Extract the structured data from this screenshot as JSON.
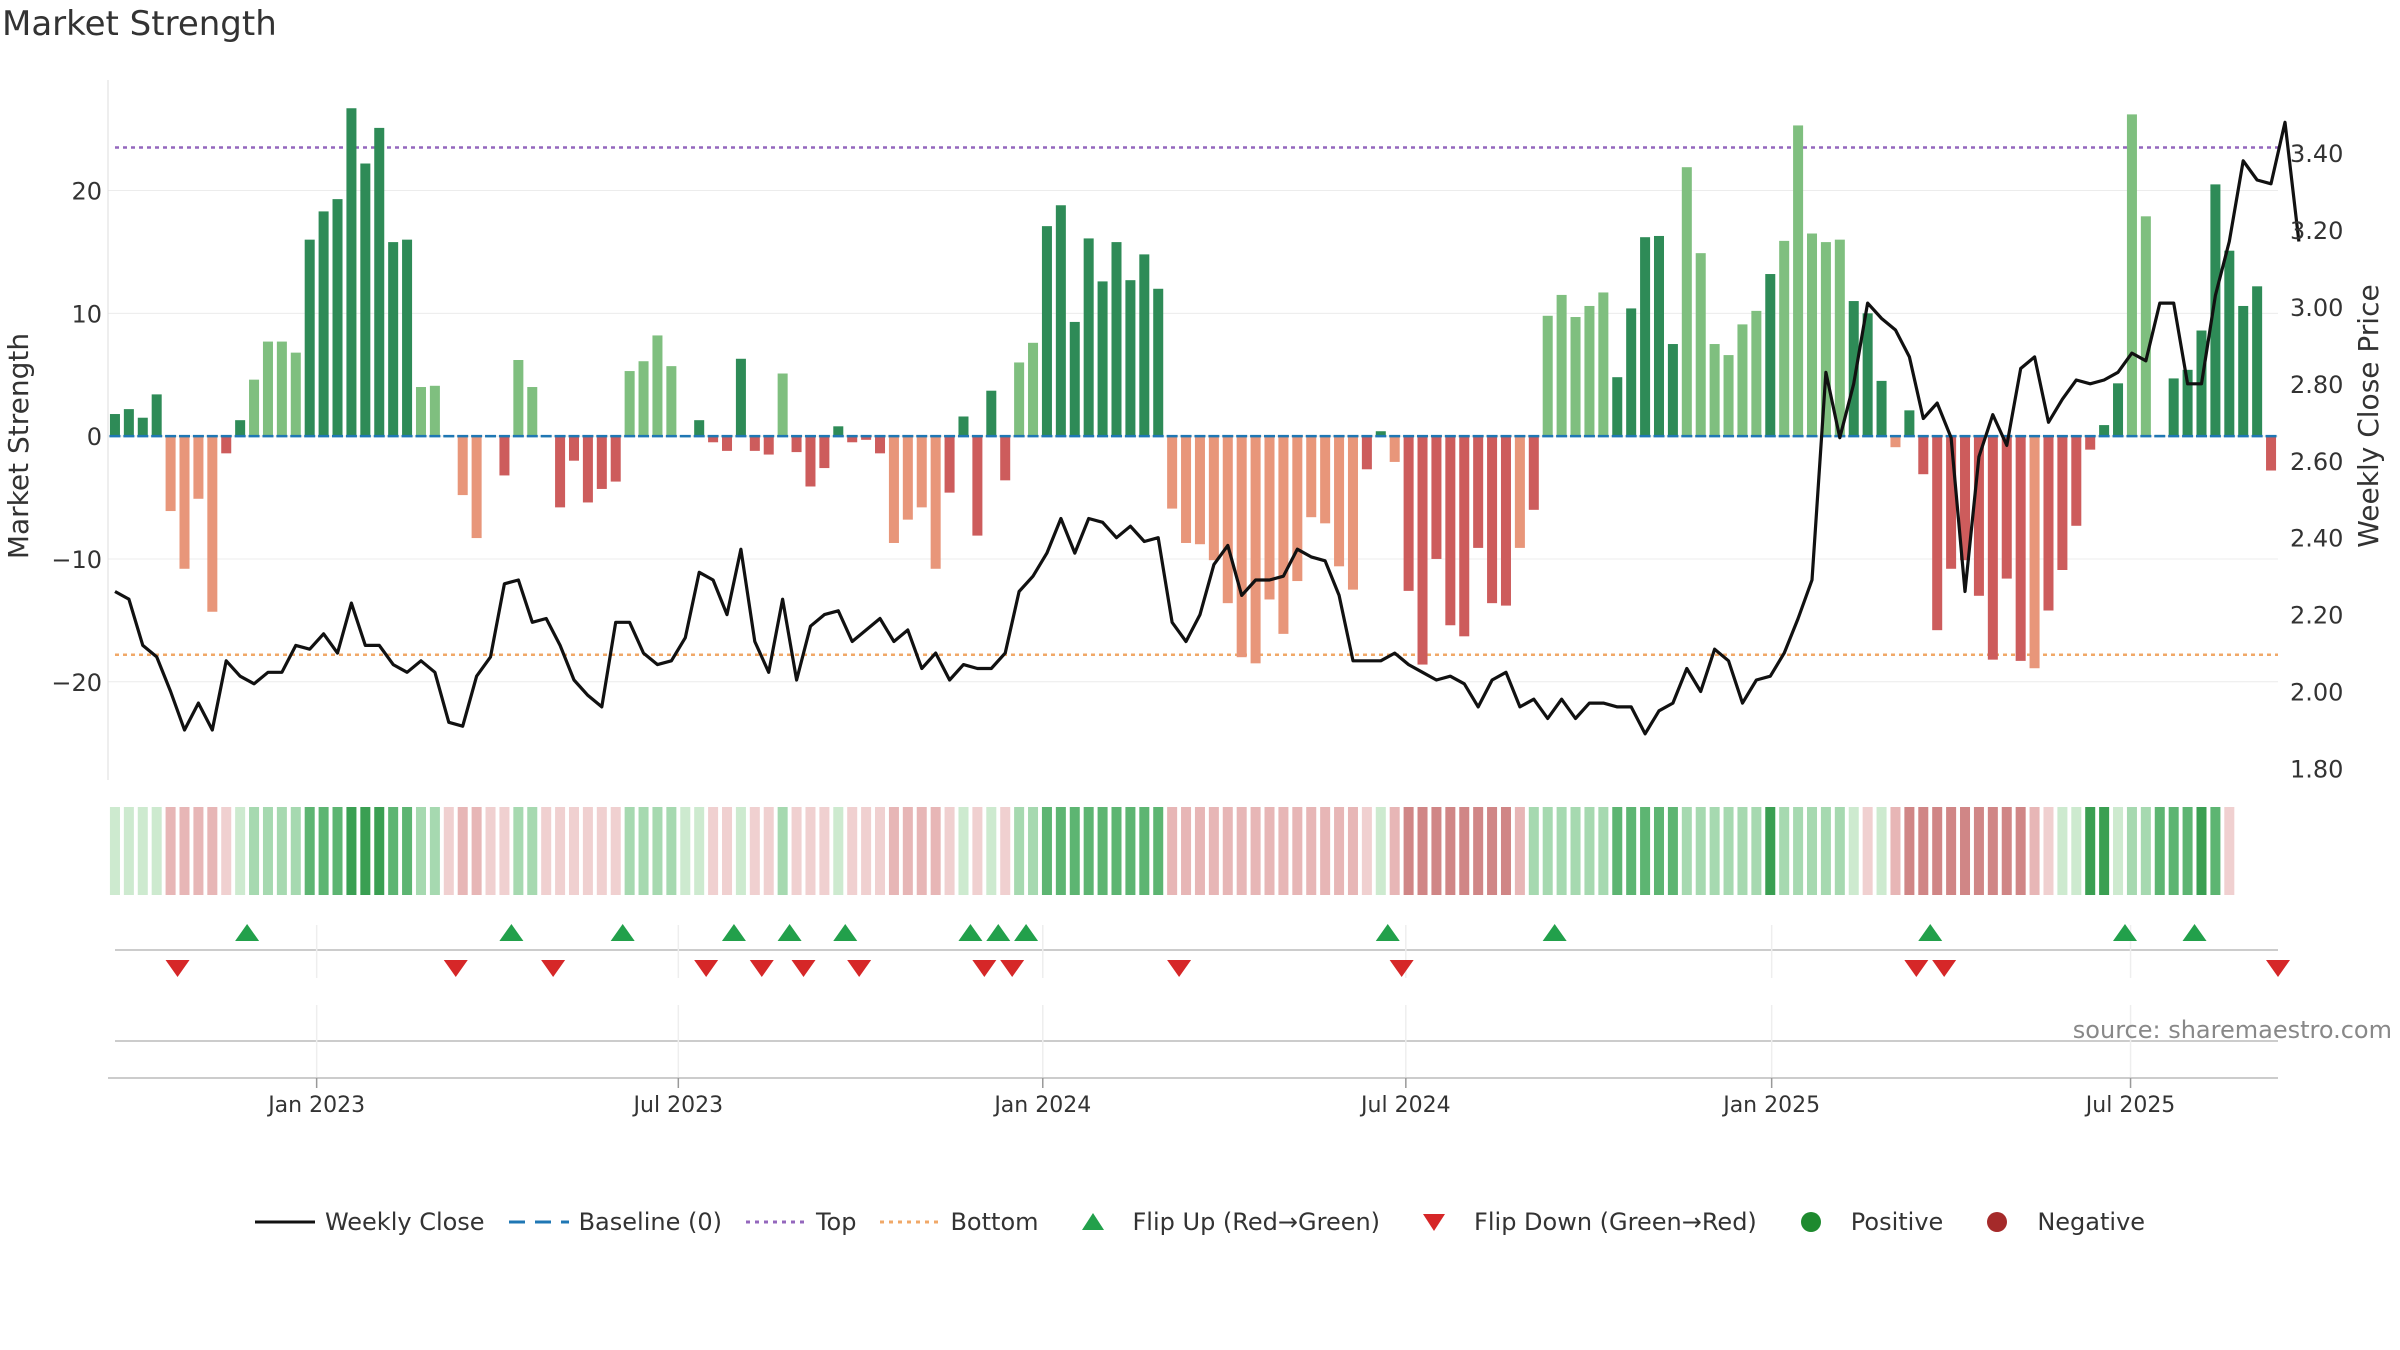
{
  "title": "Market Strength",
  "source": "source: sharemaestro.com",
  "legend": [
    {
      "label": "Weekly Close",
      "kind": "line",
      "color": "#111111"
    },
    {
      "label": "Baseline (0)",
      "kind": "dash",
      "color": "#1f77b4"
    },
    {
      "label": "Top",
      "kind": "dot",
      "color": "#9467bd"
    },
    {
      "label": "Bottom",
      "kind": "dot",
      "color": "#f0a868"
    },
    {
      "label": "Flip Up (Red→Green)",
      "kind": "tri-up",
      "color": "#22a04b"
    },
    {
      "label": "Flip Down (Green→Red)",
      "kind": "tri-down",
      "color": "#d62728"
    },
    {
      "label": "Positive",
      "kind": "circle",
      "color": "#1e8a2f"
    },
    {
      "label": "Negative",
      "kind": "circle",
      "color": "#a52a2a"
    }
  ],
  "chart_data": {
    "type": "bar",
    "title": "Market Strength",
    "ylabel": "Market Strength",
    "y2label": "Weekly Close Price",
    "ylim": [
      -28,
      29
    ],
    "y2lim": [
      1.77,
      3.59
    ],
    "yticks": [
      "−20",
      "−10",
      "0",
      "10",
      "20"
    ],
    "yticks_values": [
      -20,
      -10,
      0,
      10,
      20
    ],
    "y2ticks": [
      "1.80",
      "2.00",
      "2.20",
      "2.40",
      "2.60",
      "2.80",
      "3.00",
      "3.20",
      "3.40"
    ],
    "y2ticks_values": [
      1.8,
      2.0,
      2.2,
      2.4,
      2.6,
      2.8,
      3.0,
      3.2,
      3.4
    ],
    "xtick_labels": [
      "Jan 2023",
      "Jul 2023",
      "Jan 2024",
      "Jul 2024",
      "Jan 2025",
      "Jul 2025"
    ],
    "xtick_index": [
      14.5,
      40.5,
      66.7,
      92.8,
      119.1,
      144.9
    ],
    "top_line": 23.5,
    "bottom_line": -17.8,
    "baseline": 0,
    "strength": [
      1.8,
      2.2,
      1.5,
      3.4,
      -6.1,
      -10.8,
      -5.1,
      -14.3,
      -1.4,
      1.3,
      4.6,
      7.7,
      7.7,
      6.8,
      16,
      18.3,
      19.3,
      26.7,
      22.2,
      25.1,
      15.8,
      16,
      4,
      4.1,
      0,
      -4.8,
      -8.3,
      0,
      -3.2,
      6.2,
      4,
      0,
      -5.8,
      -2,
      -5.4,
      -4.3,
      -3.7,
      5.3,
      6.1,
      8.2,
      5.7,
      0,
      1.3,
      -0.5,
      -1.2,
      6.3,
      -1.2,
      -1.5,
      5.1,
      -1.3,
      -4.1,
      -2.6,
      0.8,
      -0.5,
      -0.3,
      -1.4,
      -8.7,
      -6.8,
      -5.8,
      -10.8,
      -4.6,
      1.6,
      -8.1,
      3.7,
      -3.6,
      6,
      7.6,
      17.1,
      18.8,
      9.3,
      16.1,
      12.6,
      15.8,
      12.7,
      14.8,
      12,
      -5.9,
      -8.7,
      -8.8,
      -10.1,
      -13.6,
      -18,
      -18.5,
      -13.3,
      -16.1,
      -11.8,
      -6.6,
      -7.1,
      -10.6,
      -12.5,
      -2.7,
      0.4,
      -2.1,
      -12.6,
      -18.6,
      -10,
      -15.4,
      -16.3,
      -9.1,
      -13.6,
      -13.8,
      -9.1,
      -6,
      9.8,
      11.5,
      9.7,
      10.6,
      11.7,
      4.8,
      10.4,
      16.2,
      16.3,
      7.5,
      21.9,
      14.9,
      7.5,
      6.6,
      9.1,
      10.2,
      13.2,
      15.9,
      25.3,
      16.5,
      15.8,
      16,
      11,
      10,
      4.5,
      -0.9,
      2.1,
      -3.1,
      -15.8,
      -10.8,
      -10.1,
      -13,
      -18.2,
      -11.6,
      -18.3,
      -18.9,
      -14.2,
      -10.9,
      -7.3,
      -1.1,
      0.9,
      4.3,
      26.2,
      17.9,
      0.1,
      4.7,
      5.4,
      8.6,
      20.5,
      15.1,
      10.6,
      12.2,
      -2.8
    ],
    "close": [
      2.26,
      2.24,
      2.12,
      2.09,
      2.0,
      1.9,
      1.97,
      1.9,
      2.08,
      2.04,
      2.02,
      2.05,
      2.05,
      2.12,
      2.11,
      2.15,
      2.1,
      2.23,
      2.12,
      2.12,
      2.07,
      2.05,
      2.08,
      2.05,
      1.92,
      1.91,
      2.04,
      2.09,
      2.28,
      2.29,
      2.18,
      2.19,
      2.12,
      2.03,
      1.99,
      1.96,
      2.18,
      2.18,
      2.1,
      2.07,
      2.08,
      2.14,
      2.31,
      2.29,
      2.2,
      2.37,
      2.13,
      2.05,
      2.24,
      2.03,
      2.17,
      2.2,
      2.21,
      2.13,
      2.16,
      2.19,
      2.13,
      2.16,
      2.06,
      2.1,
      2.03,
      2.07,
      2.06,
      2.06,
      2.1,
      2.26,
      2.3,
      2.36,
      2.45,
      2.36,
      2.45,
      2.44,
      2.4,
      2.43,
      2.39,
      2.4,
      2.18,
      2.13,
      2.2,
      2.33,
      2.38,
      2.25,
      2.29,
      2.29,
      2.3,
      2.37,
      2.35,
      2.34,
      2.25,
      2.08,
      2.08,
      2.08,
      2.1,
      2.07,
      2.05,
      2.03,
      2.04,
      2.02,
      1.96,
      2.03,
      2.05,
      1.96,
      1.98,
      1.93,
      1.98,
      1.93,
      1.97,
      1.97,
      1.96,
      1.96,
      1.89,
      1.95,
      1.97,
      2.06,
      2.0,
      2.11,
      2.08,
      1.97,
      2.03,
      2.04,
      2.1,
      2.19,
      2.29,
      2.83,
      2.66,
      2.8,
      3.01,
      2.97,
      2.94,
      2.87,
      2.71,
      2.75,
      2.66,
      2.26,
      2.61,
      2.72,
      2.64,
      2.84,
      2.87,
      2.7,
      2.76,
      2.81,
      2.8,
      2.81,
      2.83,
      2.88,
      2.86,
      3.01,
      3.01,
      2.8,
      2.8,
      3.03,
      3.17,
      3.38,
      3.33,
      3.32,
      3.48,
      3.17
    ],
    "regime": [
      1,
      1,
      1,
      1,
      -2,
      -2,
      -2,
      -2,
      -1,
      1,
      2,
      2,
      2,
      2,
      3,
      3,
      3,
      4,
      4,
      4,
      3,
      3,
      2,
      2,
      -1,
      -2,
      -2,
      -1,
      -1,
      2,
      2,
      -1,
      -1,
      -1,
      -1,
      -1,
      -1,
      2,
      2,
      2,
      2,
      1,
      1,
      -1,
      -1,
      1,
      -1,
      -1,
      2,
      -1,
      -1,
      -1,
      1,
      -1,
      -1,
      -1,
      -2,
      -2,
      -2,
      -2,
      -1,
      1,
      -1,
      1,
      -1,
      2,
      2,
      3,
      3,
      3,
      3,
      3,
      3,
      3,
      3,
      3,
      -2,
      -2,
      -2,
      -2,
      -2,
      -2,
      -2,
      -2,
      -2,
      -2,
      -2,
      -2,
      -2,
      -2,
      -1,
      1,
      -2,
      -3,
      -3,
      -3,
      -3,
      -3,
      -3,
      -3,
      -3,
      -2,
      2,
      2,
      2,
      2,
      2,
      2,
      3,
      3,
      3,
      3,
      3,
      2,
      2,
      2,
      2,
      2,
      2,
      4,
      2,
      2,
      2,
      2,
      2,
      1,
      -1,
      1,
      -2,
      -3,
      -3,
      -3,
      -3,
      -3,
      -3,
      -3,
      -3,
      -3,
      -2,
      -1,
      1,
      1,
      4,
      4,
      1,
      2,
      2,
      3,
      3,
      3,
      4,
      3,
      -1
    ],
    "flip_up": [
      9.5,
      28.5,
      36.5,
      44.5,
      48.5,
      52.5,
      61.5,
      63.5,
      65.5,
      91.5,
      103.5,
      130.5,
      144.5,
      149.5
    ],
    "flip_down": [
      4.5,
      24.5,
      31.5,
      42.5,
      46.5,
      49.5,
      53.5,
      62.5,
      64.5,
      76.5,
      92.5,
      129.5,
      131.5,
      155.5
    ]
  }
}
